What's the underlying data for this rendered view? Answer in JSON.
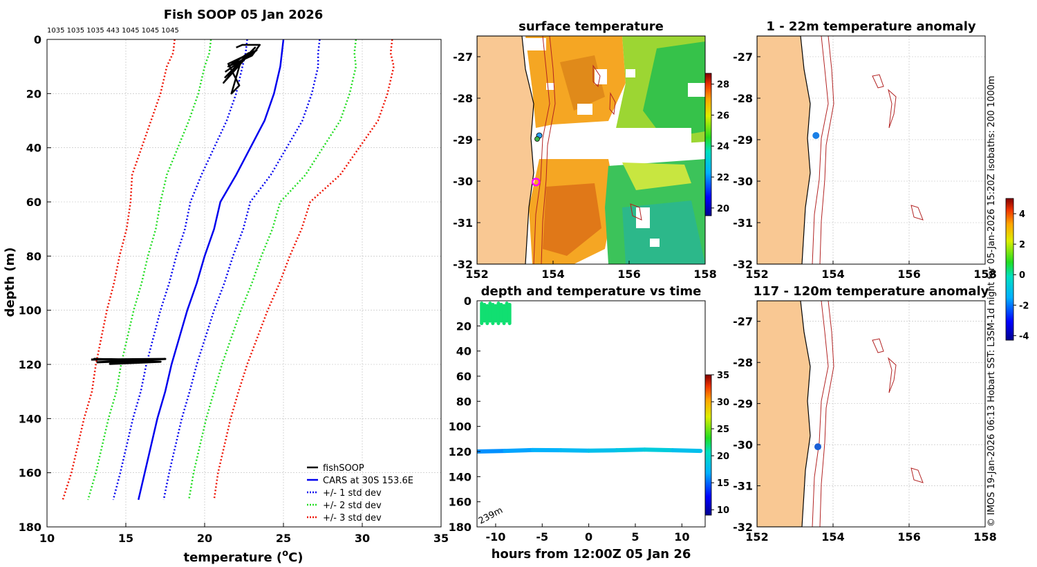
{
  "figure_title": "Fish SOOP 05 Jan 2026",
  "side_caption": "© IMOS 19-Jan-2026 06:13 Hobart SST: L3SM-1d night for 05-Jan-2026 15:20Z isobaths: 200  1000m",
  "colors": {
    "land": "#f9c893",
    "cars_mean": "#0000ee",
    "std1": "#0000ee",
    "std2": "#22dd22",
    "std3": "#ee1100",
    "fishsoop": "#000000",
    "isobath": "#b22222",
    "marker_magenta": "#ff00ff"
  },
  "chart_data": [
    {
      "id": "profile",
      "type": "line",
      "title": "Fish SOOP 05 Jan 2026",
      "top_labels": "1035 1035 1035 443 1045 1045 1045",
      "xlabel": "temperature (",
      "xlabel_sup": "o",
      "xlabel_end": "C)",
      "ylabel": "depth (m)",
      "xlim": [
        10,
        35
      ],
      "ylim": [
        0,
        180
      ],
      "xticks": [
        10,
        15,
        20,
        25,
        30,
        35
      ],
      "yticks": [
        0,
        20,
        40,
        60,
        80,
        100,
        120,
        140,
        160,
        180
      ],
      "grid": true,
      "legend": {
        "position": "bottom-right",
        "entries": [
          {
            "label": "fishSOOP",
            "style": "solid",
            "color": "#000000"
          },
          {
            "label": "CARS at 30S 153.6E",
            "style": "solid",
            "color": "#0000ee"
          },
          {
            "label": "+/- 1 std dev",
            "style": "dotted",
            "color": "#0000ee"
          },
          {
            "label": "+/- 2 std dev",
            "style": "dotted",
            "color": "#22dd22"
          },
          {
            "label": "+/- 3 std dev",
            "style": "dotted",
            "color": "#ee1100"
          }
        ]
      },
      "depth": [
        0,
        5,
        10,
        20,
        30,
        40,
        50,
        60,
        70,
        80,
        90,
        100,
        110,
        120,
        130,
        140,
        150,
        160,
        170
      ],
      "cars_mean": [
        25.0,
        24.9,
        24.8,
        24.4,
        23.8,
        22.9,
        22.0,
        21.0,
        20.6,
        20.0,
        19.5,
        18.9,
        18.4,
        17.9,
        17.5,
        17.0,
        16.6,
        16.2,
        15.8
      ],
      "cars_std": [
        2.3,
        2.3,
        2.4,
        2.4,
        2.4,
        2.3,
        2.2,
        1.9,
        1.85,
        1.8,
        1.75,
        1.7,
        1.65,
        1.6,
        1.55,
        1.55,
        1.55,
        1.55,
        1.6
      ],
      "fishsoop_surface": [
        [
          22.0,
          3
        ],
        [
          22.4,
          2
        ],
        [
          23.5,
          2
        ],
        [
          23.0,
          6
        ],
        [
          21.5,
          10
        ],
        [
          22.8,
          5
        ],
        [
          21.3,
          14
        ],
        [
          23.2,
          3
        ],
        [
          21.2,
          16
        ],
        [
          22.3,
          8
        ],
        [
          21.7,
          20
        ],
        [
          22.2,
          17
        ],
        [
          21.5,
          9
        ],
        [
          23.3,
          4
        ],
        [
          21.3,
          12
        ]
      ],
      "fishsoop_deep": [
        [
          12.8,
          118.2
        ],
        [
          17.5,
          118.0
        ],
        [
          13.2,
          119.2
        ],
        [
          16.5,
          118.5
        ],
        [
          13.0,
          118.0
        ],
        [
          17.2,
          119.0
        ],
        [
          14.0,
          119.8
        ],
        [
          15.5,
          119.0
        ]
      ]
    },
    {
      "id": "sst_map",
      "type": "heatmap",
      "title": "surface temperature",
      "xlim": [
        152,
        158
      ],
      "ylim": [
        -32,
        -26.5
      ],
      "xticks": [
        152,
        154,
        156,
        158
      ],
      "yticks": [
        -32,
        -31,
        -30,
        -29,
        -28,
        -27
      ],
      "colorbar": {
        "min": 19.5,
        "max": 28.7,
        "ticks": [
          20,
          22,
          24,
          26,
          28
        ]
      },
      "marker": {
        "lon": 153.55,
        "lat": -30.02
      }
    },
    {
      "id": "depth_time",
      "type": "scatter",
      "title": "depth and temperature vs time",
      "xlabel": "hours from 12:00Z 05 Jan 26",
      "xlim": [
        -12,
        12.5
      ],
      "ylim": [
        0,
        180
      ],
      "xticks": [
        -10,
        -5,
        0,
        5,
        10
      ],
      "yticks": [
        0,
        20,
        40,
        60,
        80,
        100,
        120,
        140,
        160,
        180
      ],
      "annotation": "239m",
      "colorbar": {
        "min": 9,
        "max": 35,
        "ticks": [
          10,
          15,
          20,
          25,
          30,
          35
        ]
      },
      "series": [
        {
          "name": "shallow",
          "x_range": [
            -11.5,
            -8.5
          ],
          "depth_range": [
            2,
            18
          ],
          "temperature": 22
        },
        {
          "name": "deep",
          "x": [
            -12,
            -9,
            -6,
            -3,
            0,
            3,
            6,
            9,
            12
          ],
          "depth": [
            120,
            119.5,
            118.8,
            119,
            119.3,
            119,
            118.5,
            119,
            119.5
          ],
          "temperature": [
            16,
            16.5,
            17,
            17.5,
            18,
            18.5,
            19,
            18,
            17
          ]
        }
      ]
    },
    {
      "id": "anom_surface",
      "type": "heatmap",
      "title": "1 - 22m temperature anomaly",
      "xlim": [
        152,
        158
      ],
      "ylim": [
        -32,
        -26.5
      ],
      "xticks": [
        152,
        154,
        156,
        158
      ],
      "yticks": [
        -32,
        -31,
        -30,
        -29,
        -28,
        -27
      ],
      "points": [
        {
          "lon": 153.55,
          "lat": -28.9,
          "anomaly": -3.0
        }
      ]
    },
    {
      "id": "anom_deep",
      "type": "heatmap",
      "title": "117 - 120m temperature anomaly",
      "xlim": [
        152,
        158
      ],
      "ylim": [
        -32,
        -26.5
      ],
      "xticks": [
        152,
        154,
        156,
        158
      ],
      "yticks": [
        -32,
        -31,
        -30,
        -29,
        -28,
        -27
      ],
      "points": [
        {
          "lon": 153.6,
          "lat": -30.05,
          "anomaly": -3.2
        }
      ]
    },
    {
      "id": "anomaly_colorbar",
      "type": "heatmap",
      "colorbar": {
        "min": -4.3,
        "max": 5.0,
        "ticks": [
          4,
          2,
          0,
          -2,
          -4
        ]
      }
    }
  ]
}
